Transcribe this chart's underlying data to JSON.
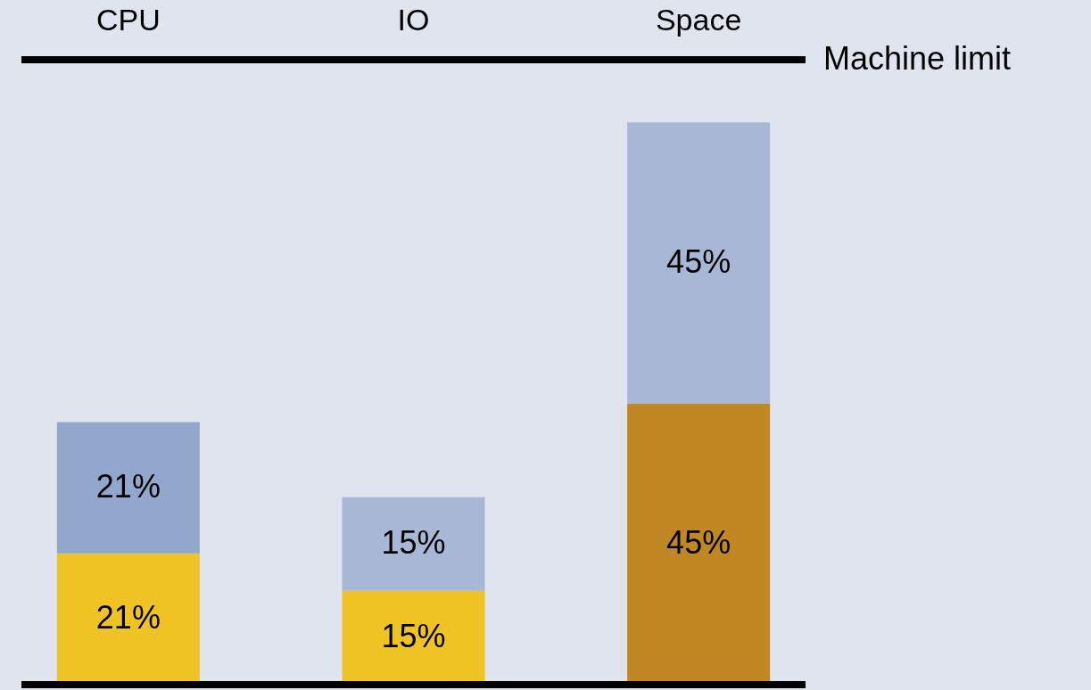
{
  "chart_data": {
    "type": "bar",
    "stacked": true,
    "categories": [
      "CPU",
      "IO",
      "Space"
    ],
    "series": [
      {
        "colors": [
          "#f0c325",
          "#f0c325",
          "#c08722"
        ],
        "values": [
          21,
          15,
          45
        ],
        "value_labels": [
          "21%",
          "15%",
          "45%"
        ]
      },
      {
        "colors": [
          "#91a7cb",
          "#a8b7d6",
          "#a8b7d6"
        ],
        "values": [
          21,
          15,
          45
        ],
        "value_labels": [
          "21%",
          "15%",
          "45%"
        ]
      }
    ],
    "ylim": [
      0,
      109
    ],
    "ref_lines": [
      {
        "axis": "y",
        "value": 100,
        "label": "Machine limit",
        "color": "#000000"
      }
    ]
  }
}
